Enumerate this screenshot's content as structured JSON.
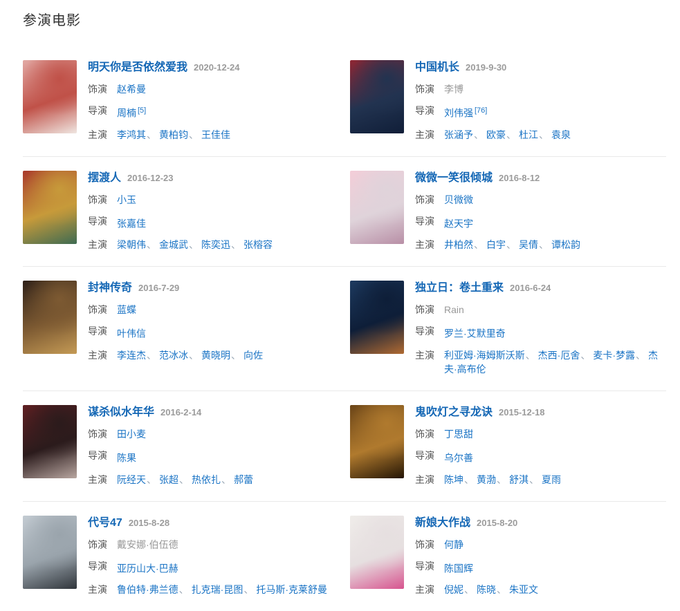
{
  "page": {
    "title": "参演电影"
  },
  "labels": {
    "role": "饰演",
    "director": "导演",
    "cast": "主演",
    "separator": "、"
  },
  "colors": {
    "title_link": "#1467b5",
    "link_blue": "#1b74c5",
    "date_grey": "#9b9b9b",
    "label_grey": "#565656",
    "plain_grey": "#999999",
    "divider": "#e9e9e9",
    "section_title": "#333333"
  },
  "movies": [
    {
      "title": "明天你是否依然爱我",
      "date": "2020-12-24",
      "role": "赵希曼",
      "director": "周楠",
      "director_sup": "[5]",
      "cast": [
        "李鸿其",
        "黄柏钧",
        "王佳佳"
      ],
      "poster_colors": [
        "#e2a9a4",
        "#c05148",
        "#efe6e1"
      ]
    },
    {
      "title": "中国机长",
      "date": "2019-9-30",
      "role": "李博",
      "role_plain": true,
      "director": "刘伟强",
      "director_sup": "[76]",
      "cast": [
        "张涵予",
        "欧豪",
        "杜江",
        "袁泉"
      ],
      "poster_colors": [
        "#8e2633",
        "#223350",
        "#101e38"
      ]
    },
    {
      "title": "摆渡人",
      "date": "2016-12-23",
      "role": "小玉",
      "director": "张嘉佳",
      "cast": [
        "梁朝伟",
        "金城武",
        "陈奕迅",
        "张榕容"
      ],
      "poster_colors": [
        "#a93a2c",
        "#c79a3a",
        "#3e6b52"
      ]
    },
    {
      "title": "微微一笑很倾城",
      "date": "2016-8-12",
      "role": "贝微微",
      "director": "赵天宇",
      "cast": [
        "井柏然",
        "白宇",
        "吴倩",
        "谭松韵"
      ],
      "poster_colors": [
        "#f3cdd8",
        "#dfd3da",
        "#b88fa6"
      ]
    },
    {
      "title": "封神传奇",
      "date": "2016-7-29",
      "role": "蓝蝶",
      "director": "叶伟信",
      "cast": [
        "李连杰",
        "范冰冰",
        "黄晓明",
        "向佐"
      ],
      "poster_colors": [
        "#2e2018",
        "#7d5a32",
        "#c49a55"
      ]
    },
    {
      "title": "独立日：卷土重来",
      "date": "2016-6-24",
      "role": "Rain",
      "role_plain": true,
      "director": "罗兰·艾默里奇",
      "cast": [
        "利亚姆·海姆斯沃斯",
        "杰西·厄舍",
        "麦卡·梦露",
        "杰夫·高布伦"
      ],
      "poster_colors": [
        "#1d3a5f",
        "#0e1e38",
        "#b06a32"
      ]
    },
    {
      "title": "谋杀似水年华",
      "date": "2016-2-14",
      "role": "田小麦",
      "director": "陈果",
      "cast": [
        "阮经天",
        "张超",
        "热依扎",
        "郝蕾"
      ],
      "poster_colors": [
        "#5f1f22",
        "#2b1b1c",
        "#b8a6a0"
      ]
    },
    {
      "title": "鬼吹灯之寻龙诀",
      "date": "2015-12-18",
      "role": "丁思甜",
      "director": "乌尔善",
      "cast": [
        "陈坤",
        "黄渤",
        "舒淇",
        "夏雨"
      ],
      "poster_colors": [
        "#6b4518",
        "#b07a2e",
        "#241505"
      ]
    },
    {
      "title": "代号47",
      "date": "2015-8-28",
      "role": "戴安娜·伯伍德",
      "role_plain": true,
      "director": "亚历山大·巴赫",
      "cast": [
        "鲁伯特·弗兰德",
        "扎克瑞·昆图",
        "托马斯·克莱舒曼"
      ],
      "poster_colors": [
        "#c3cbd2",
        "#9aa4ac",
        "#30353b"
      ]
    },
    {
      "title": "新娘大作战",
      "date": "2015-8-20",
      "role": "何静",
      "director": "陈国辉",
      "cast": [
        "倪妮",
        "陈晓",
        "朱亚文"
      ],
      "poster_colors": [
        "#efece9",
        "#e6dfe0",
        "#d7538e"
      ]
    }
  ]
}
